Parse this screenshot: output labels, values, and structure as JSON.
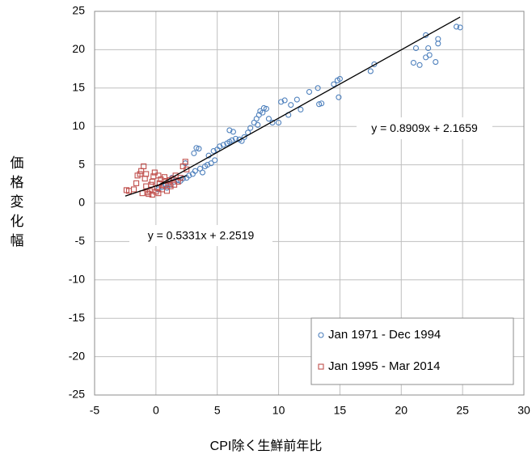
{
  "chart_data": {
    "type": "scatter",
    "x_label": "CPI除く生鮮前年比",
    "y_label": "価格変化幅",
    "xlim": [
      -5,
      30
    ],
    "xticks": [
      -5,
      0,
      5,
      10,
      15,
      20,
      25,
      30
    ],
    "ylim": [
      -25,
      25
    ],
    "yticks": [
      -25,
      -20,
      -15,
      -10,
      -5,
      0,
      5,
      10,
      15,
      20,
      25
    ],
    "grid": true,
    "legend": "lower right",
    "series": [
      {
        "name": "Jan 1971 - Dec 1994",
        "color": "#4f81bd",
        "marker": "circle",
        "x": [
          0.2,
          0.5,
          0.8,
          1.0,
          1.2,
          1.5,
          1.8,
          2.0,
          2.2,
          2.5,
          2.7,
          3.0,
          3.1,
          3.3,
          3.5,
          3.2,
          3.6,
          3.8,
          4.0,
          4.2,
          4.5,
          4.3,
          4.7,
          5.0,
          5.2,
          5.5,
          4.8,
          5.8,
          6.0,
          6.2,
          6.5,
          6.8,
          7.0,
          6.0,
          6.3,
          7.2,
          7.5,
          7.7,
          8.0,
          8.2,
          8.4,
          8.5,
          8.7,
          9.0,
          8.8,
          9.2,
          8.3,
          9.5,
          10.2,
          10.5,
          11.0,
          11.5,
          11.8,
          10.0,
          10.8,
          12.5,
          13.2,
          13.5,
          13.3,
          14.5,
          14.8,
          15.0,
          14.9,
          17.5,
          17.8,
          21.0,
          21.5,
          22.0,
          22.3,
          22.2,
          22.8,
          21.2,
          22.0,
          23.0,
          23.0,
          24.5,
          24.8,
          2.4,
          1.3,
          0.9
        ],
        "values": [
          1.8,
          2.1,
          2.3,
          2.6,
          2.4,
          2.8,
          3.0,
          2.9,
          3.2,
          3.3,
          3.6,
          3.8,
          6.5,
          7.2,
          7.1,
          4.2,
          4.5,
          4.0,
          4.8,
          5.0,
          5.2,
          6.2,
          6.8,
          7.0,
          7.4,
          7.6,
          5.6,
          7.8,
          8.0,
          8.2,
          8.4,
          8.3,
          8.1,
          9.5,
          9.3,
          8.6,
          9.2,
          9.8,
          10.5,
          11.0,
          11.5,
          12.0,
          11.8,
          12.3,
          12.4,
          11.0,
          10.2,
          10.5,
          13.2,
          13.4,
          12.8,
          13.5,
          12.2,
          10.5,
          11.5,
          14.5,
          15.0,
          13.0,
          12.9,
          15.5,
          16.0,
          16.2,
          13.8,
          17.2,
          18.1,
          18.3,
          18.0,
          19.0,
          19.3,
          20.2,
          18.4,
          20.2,
          21.9,
          21.4,
          20.8,
          23.0,
          22.9,
          5.2,
          3.3,
          2.0
        ]
      },
      {
        "name": "Jan 1995 - Mar 2014",
        "color": "#c0504d",
        "marker": "square",
        "x": [
          -2.4,
          -2.2,
          -1.8,
          -1.6,
          -1.5,
          -1.3,
          -1.2,
          -1.0,
          -0.9,
          -0.8,
          -0.7,
          -0.6,
          -0.5,
          -0.4,
          -0.3,
          -0.2,
          -0.1,
          0.0,
          0.1,
          0.2,
          0.3,
          0.4,
          0.5,
          0.6,
          0.7,
          0.8,
          1.0,
          1.1,
          1.2,
          1.4,
          1.6,
          1.8,
          2.0,
          2.2,
          2.4,
          2.5,
          -1.1,
          -0.8,
          0.2,
          1.5,
          -0.3,
          0.9
        ],
        "values": [
          1.7,
          1.6,
          1.8,
          2.6,
          3.6,
          3.8,
          4.2,
          4.8,
          3.2,
          2.2,
          1.4,
          1.2,
          1.6,
          2.4,
          2.8,
          3.5,
          4.0,
          1.5,
          2.0,
          1.3,
          2.6,
          3.1,
          1.8,
          2.3,
          3.4,
          2.9,
          2.5,
          3.0,
          2.2,
          3.2,
          3.6,
          2.8,
          3.3,
          4.8,
          5.4,
          4.4,
          1.3,
          3.8,
          3.6,
          2.4,
          1.1,
          1.6
        ]
      }
    ],
    "trendlines": [
      {
        "label": "y = 0.8909x + 2.1659",
        "slope": 0.8909,
        "intercept": 2.1659,
        "x_range": [
          0,
          24.8
        ]
      },
      {
        "label": "y = 0.5331x + 2.2519",
        "slope": 0.5331,
        "intercept": 2.2519,
        "x_range": [
          -2.5,
          2.5
        ]
      }
    ]
  }
}
